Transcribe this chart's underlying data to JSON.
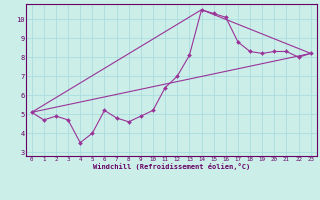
{
  "xlabel": "Windchill (Refroidissement éolien,°C)",
  "bg_color": "#cceee8",
  "line_color": "#993399",
  "grid_color": "#aadddd",
  "xlim": [
    -0.5,
    23.5
  ],
  "ylim": [
    2.8,
    10.8
  ],
  "yticks": [
    3,
    4,
    5,
    6,
    7,
    8,
    9,
    10
  ],
  "xticks": [
    0,
    1,
    2,
    3,
    4,
    5,
    6,
    7,
    8,
    9,
    10,
    11,
    12,
    13,
    14,
    15,
    16,
    17,
    18,
    19,
    20,
    21,
    22,
    23
  ],
  "series1_x": [
    0,
    1,
    2,
    3,
    4,
    5,
    6,
    7,
    8,
    9,
    10,
    11,
    12,
    13,
    14,
    15,
    16,
    17,
    18,
    19,
    20,
    21,
    22,
    23
  ],
  "series1_y": [
    5.1,
    4.7,
    4.9,
    4.7,
    3.5,
    4.0,
    5.2,
    4.8,
    4.6,
    4.9,
    5.2,
    6.4,
    7.0,
    8.1,
    10.5,
    10.3,
    10.1,
    8.8,
    8.3,
    8.2,
    8.3,
    8.3,
    8.0,
    8.2
  ],
  "series2_x": [
    0,
    23
  ],
  "series2_y": [
    5.1,
    8.2
  ],
  "series3_x": [
    0,
    14,
    23
  ],
  "series3_y": [
    5.1,
    10.5,
    8.2
  ]
}
